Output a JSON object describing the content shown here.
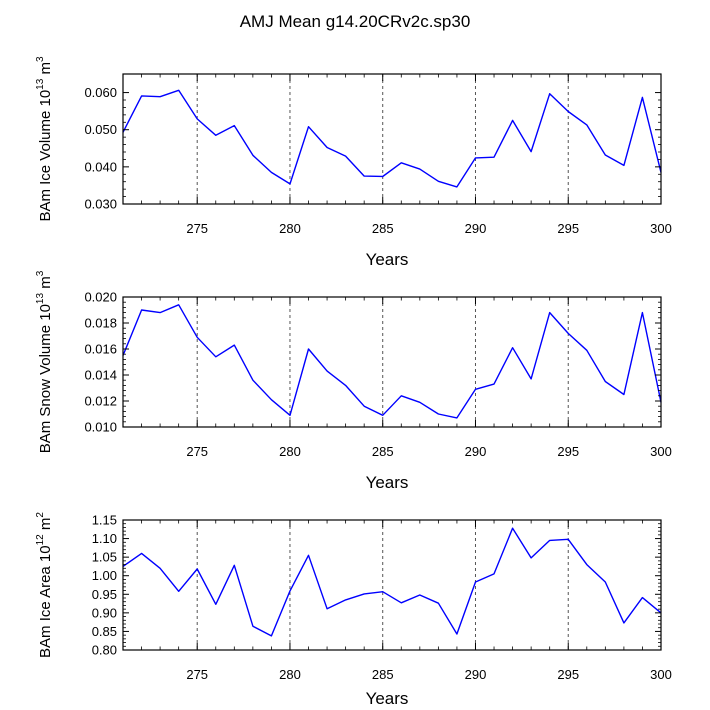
{
  "title": "AMJ Mean g14.20CRv2c.sp30",
  "colors": {
    "line": "#0000ff",
    "axis": "#000000",
    "grid": "#555555"
  },
  "chart_data": [
    {
      "type": "line",
      "xlabel": "Years",
      "ylabel_main": "BAm Ice Volume 10",
      "ylabel_exp": "13",
      "ylabel_unit": " m",
      "ylabel_unit_exp": "3",
      "xlim": [
        271,
        300
      ],
      "ylim": [
        0.03,
        0.065
      ],
      "yticks": [
        0.03,
        0.04,
        0.05,
        0.06
      ],
      "ytick_labels": [
        "0.030",
        "0.040",
        "0.050",
        "0.060"
      ],
      "xticks": [
        275,
        280,
        285,
        290,
        295,
        300
      ],
      "xtick_labels": [
        "275",
        "280",
        "285",
        "290",
        "295",
        "300"
      ],
      "grid_x": [
        275,
        280,
        285,
        290,
        295
      ],
      "x": [
        271,
        272,
        273,
        274,
        275,
        276,
        277,
        278,
        279,
        280,
        281,
        282,
        283,
        284,
        285,
        286,
        287,
        288,
        289,
        290,
        291,
        292,
        293,
        294,
        295,
        296,
        297,
        298,
        299,
        300
      ],
      "y": [
        0.0493,
        0.0591,
        0.0589,
        0.0606,
        0.0529,
        0.0485,
        0.0511,
        0.0431,
        0.0385,
        0.0354,
        0.0508,
        0.0452,
        0.0429,
        0.0375,
        0.0374,
        0.0411,
        0.0394,
        0.0361,
        0.0346,
        0.0424,
        0.0426,
        0.0525,
        0.0441,
        0.0597,
        0.0549,
        0.0513,
        0.0432,
        0.0404,
        0.0587,
        0.0385
      ]
    },
    {
      "type": "line",
      "xlabel": "Years",
      "ylabel_main": "BAm Snow Volume 10",
      "ylabel_exp": "13",
      "ylabel_unit": " m",
      "ylabel_unit_exp": "3",
      "xlim": [
        271,
        300
      ],
      "ylim": [
        0.01,
        0.02
      ],
      "yticks": [
        0.01,
        0.012,
        0.014,
        0.016,
        0.018,
        0.02
      ],
      "ytick_labels": [
        "0.010",
        "0.012",
        "0.014",
        "0.016",
        "0.018",
        "0.020"
      ],
      "xticks": [
        275,
        280,
        285,
        290,
        295,
        300
      ],
      "xtick_labels": [
        "275",
        "280",
        "285",
        "290",
        "295",
        "300"
      ],
      "grid_x": [
        275,
        280,
        285,
        290,
        295
      ],
      "x": [
        271,
        272,
        273,
        274,
        275,
        276,
        277,
        278,
        279,
        280,
        281,
        282,
        283,
        284,
        285,
        286,
        287,
        288,
        289,
        290,
        291,
        292,
        293,
        294,
        295,
        296,
        297,
        298,
        299,
        300
      ],
      "y": [
        0.0155,
        0.019,
        0.0188,
        0.0194,
        0.0169,
        0.0154,
        0.0163,
        0.0136,
        0.0121,
        0.0109,
        0.016,
        0.0143,
        0.0132,
        0.0116,
        0.0109,
        0.0124,
        0.0119,
        0.011,
        0.0107,
        0.0129,
        0.0133,
        0.0161,
        0.0137,
        0.0188,
        0.0172,
        0.0159,
        0.0135,
        0.0125,
        0.0188,
        0.0119
      ]
    },
    {
      "type": "line",
      "xlabel": "Years",
      "ylabel_main": "BAm Ice Area 10",
      "ylabel_exp": "12",
      "ylabel_unit": " m",
      "ylabel_unit_exp": "2",
      "xlim": [
        271,
        300
      ],
      "ylim": [
        0.8,
        1.15
      ],
      "yticks": [
        0.8,
        0.85,
        0.9,
        0.95,
        1.0,
        1.05,
        1.1,
        1.15
      ],
      "ytick_labels": [
        "0.80",
        "0.85",
        "0.90",
        "0.95",
        "1.00",
        "1.05",
        "1.10",
        "1.15"
      ],
      "xticks": [
        275,
        280,
        285,
        290,
        295,
        300
      ],
      "xtick_labels": [
        "275",
        "280",
        "285",
        "290",
        "295",
        "300"
      ],
      "grid_x": [
        275,
        280,
        285,
        290,
        295
      ],
      "x": [
        271,
        272,
        273,
        274,
        275,
        276,
        277,
        278,
        279,
        280,
        281,
        282,
        283,
        284,
        285,
        286,
        287,
        288,
        289,
        290,
        291,
        292,
        293,
        294,
        295,
        296,
        297,
        298,
        299,
        300
      ],
      "y": [
        1.025,
        1.06,
        1.02,
        0.958,
        1.018,
        0.923,
        1.028,
        0.864,
        0.838,
        0.959,
        1.055,
        0.911,
        0.935,
        0.951,
        0.957,
        0.927,
        0.948,
        0.926,
        0.843,
        0.983,
        1.005,
        1.128,
        1.048,
        1.095,
        1.098,
        1.03,
        0.983,
        0.873,
        0.941,
        0.9
      ]
    }
  ]
}
